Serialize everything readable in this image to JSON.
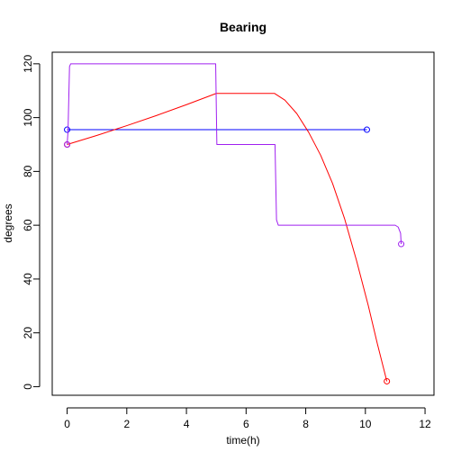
{
  "chart_data": {
    "type": "line",
    "title": "Bearing",
    "xlabel": "time(h)",
    "ylabel": "degrees",
    "xlim": [
      -0.5,
      12.3
    ],
    "ylim": [
      -3.2,
      124.3
    ],
    "x_ticks": [
      0,
      2,
      4,
      6,
      8,
      10,
      12
    ],
    "y_ticks": [
      0,
      20,
      40,
      60,
      80,
      100,
      120
    ],
    "grid": false,
    "legend": "none",
    "series": [
      {
        "color": "#0000ff",
        "points": [
          [
            0,
            95.5
          ],
          [
            10.05,
            95.5
          ]
        ],
        "markers": [
          [
            0,
            95.5
          ],
          [
            10.05,
            95.5
          ]
        ]
      },
      {
        "color": "#ff0000",
        "points": [
          [
            0,
            90
          ],
          [
            1,
            93.4
          ],
          [
            2,
            97
          ],
          [
            3,
            100.8
          ],
          [
            4,
            104.8
          ],
          [
            5,
            109
          ],
          [
            6,
            109
          ],
          [
            6.95,
            109
          ],
          [
            7.3,
            106.5
          ],
          [
            7.7,
            101.5
          ],
          [
            8.1,
            94.5
          ],
          [
            8.5,
            86
          ],
          [
            8.9,
            75.5
          ],
          [
            9.3,
            62.5
          ],
          [
            9.7,
            47
          ],
          [
            10.1,
            30
          ],
          [
            10.4,
            16
          ],
          [
            10.72,
            2
          ]
        ],
        "markers": [
          [
            0,
            90
          ],
          [
            10.72,
            2
          ]
        ]
      },
      {
        "color": "#a020f0",
        "points": [
          [
            0,
            90
          ],
          [
            0.03,
            95
          ],
          [
            0.08,
            119
          ],
          [
            0.12,
            120
          ],
          [
            4.98,
            120
          ],
          [
            5.02,
            90
          ],
          [
            6.97,
            90
          ],
          [
            7.02,
            62
          ],
          [
            7.08,
            60
          ],
          [
            11,
            60
          ],
          [
            11.1,
            59.3
          ],
          [
            11.18,
            57
          ],
          [
            11.2,
            53
          ]
        ],
        "markers": [
          [
            0,
            90
          ],
          [
            11.2,
            53
          ]
        ]
      }
    ]
  }
}
